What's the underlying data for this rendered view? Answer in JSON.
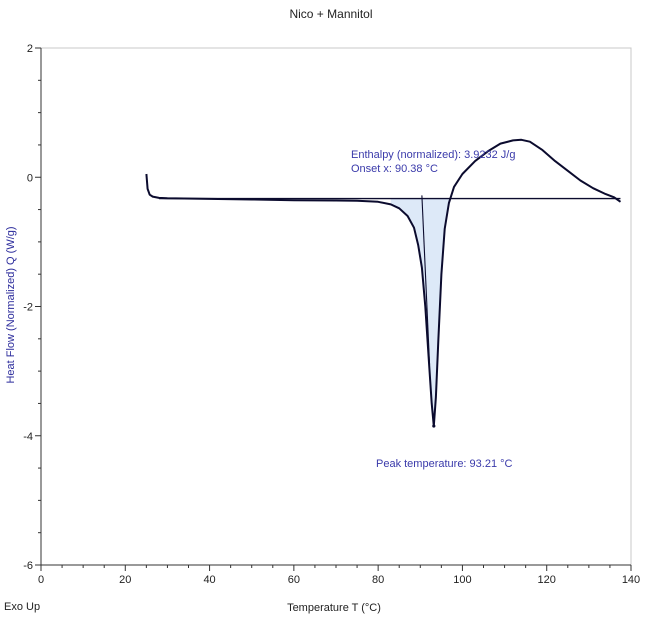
{
  "chart_data": {
    "type": "line",
    "title": "Nico + Mannitol",
    "xlabel": "Temperature T (°C)",
    "ylabel": "Heat Flow (Normalized) Q (W/g)",
    "xlim": [
      0,
      140
    ],
    "ylim": [
      -6,
      2
    ],
    "x_ticks": [
      0,
      20,
      40,
      60,
      80,
      100,
      120,
      140
    ],
    "y_ticks": [
      -6,
      -4,
      -2,
      0,
      2
    ],
    "grid": false,
    "corner_label": "Exo Up",
    "series": [
      {
        "color": "#0b0b2e",
        "points": [
          [
            25.0,
            0.05
          ],
          [
            25.3,
            -0.18
          ],
          [
            25.8,
            -0.27
          ],
          [
            26.5,
            -0.3
          ],
          [
            28,
            -0.32
          ],
          [
            30,
            -0.325
          ],
          [
            40,
            -0.335
          ],
          [
            50,
            -0.345
          ],
          [
            60,
            -0.355
          ],
          [
            70,
            -0.36
          ],
          [
            75,
            -0.365
          ],
          [
            80,
            -0.38
          ],
          [
            83,
            -0.42
          ],
          [
            85,
            -0.48
          ],
          [
            87,
            -0.6
          ],
          [
            88.5,
            -0.78
          ],
          [
            89.5,
            -1.05
          ],
          [
            90.38,
            -1.4
          ],
          [
            91.2,
            -2.0
          ],
          [
            92.0,
            -2.8
          ],
          [
            92.7,
            -3.5
          ],
          [
            93.21,
            -3.85
          ],
          [
            93.7,
            -3.4
          ],
          [
            94.3,
            -2.5
          ],
          [
            95.0,
            -1.5
          ],
          [
            95.8,
            -0.8
          ],
          [
            96.8,
            -0.4
          ],
          [
            98.0,
            -0.15
          ],
          [
            100,
            0.05
          ],
          [
            103,
            0.25
          ],
          [
            106,
            0.4
          ],
          [
            109,
            0.52
          ],
          [
            112,
            0.57
          ],
          [
            114,
            0.58
          ],
          [
            116,
            0.55
          ],
          [
            119,
            0.42
          ],
          [
            122,
            0.25
          ],
          [
            125,
            0.1
          ],
          [
            128,
            -0.05
          ],
          [
            131,
            -0.17
          ],
          [
            134,
            -0.26
          ],
          [
            136,
            -0.31
          ],
          [
            137.5,
            -0.38
          ]
        ]
      }
    ],
    "baseline": {
      "from": [
        28,
        -0.33
      ],
      "to": [
        137.5,
        -0.33
      ],
      "color": "#0b0b2e"
    },
    "integration_range": [
      83,
      97
    ],
    "fill_color": "#dde9f8",
    "annotations": [
      {
        "text": "Enthalpy (normalized): 3.9232 J/g",
        "color": "#3a3aaa"
      },
      {
        "text": "Onset x: 90.38 °C",
        "color": "#3a3aaa"
      },
      {
        "text": "Peak temperature: 93.21 °C",
        "color": "#3a3aaa"
      }
    ]
  }
}
